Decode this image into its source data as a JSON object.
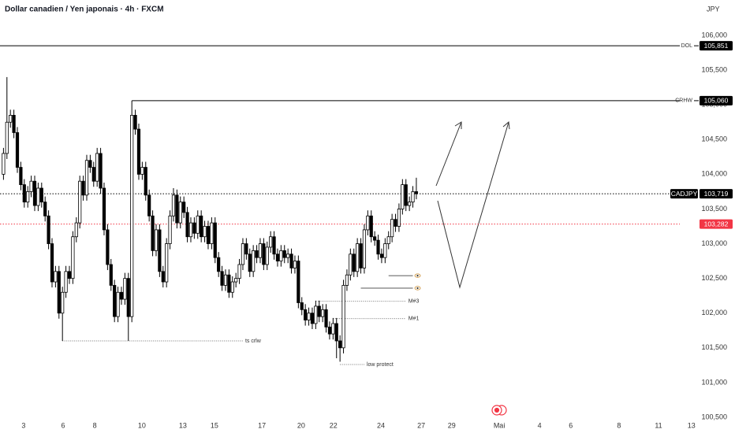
{
  "chart_data": {
    "type": "candlestick",
    "title": "Dollar canadien / Yen japonais · 4h · FXCM",
    "currency": "JPY",
    "up_color": "#ffffff",
    "down_color": "#000000",
    "edge_color": "#000000",
    "grid": false,
    "open": [
      104.0,
      104.3,
      104.75,
      104.85,
      104.6,
      104.1,
      103.85,
      103.6,
      103.75,
      103.9,
      103.55,
      103.8,
      103.6,
      103.4,
      103.0,
      102.45,
      102.6,
      102.0,
      102.3,
      102.6,
      102.5,
      103.1,
      103.3,
      103.9,
      103.7,
      104.2,
      104.1,
      103.9,
      104.3,
      103.8,
      103.2,
      102.7,
      102.4,
      101.95,
      102.3,
      102.2,
      102.5,
      101.95,
      104.85,
      104.65,
      104.0,
      104.1,
      103.7,
      103.4,
      102.9,
      103.2,
      102.6,
      102.45,
      103.0,
      103.4,
      103.7,
      103.3,
      103.6,
      103.45,
      103.1,
      103.3,
      103.15,
      103.4,
      103.1,
      103.25,
      103.0,
      103.3,
      102.8,
      102.6,
      102.4,
      102.55,
      102.3,
      102.45,
      102.5,
      102.7,
      103.0,
      102.85,
      102.6,
      102.9,
      102.8,
      103.0,
      102.7,
      102.95,
      103.1,
      102.85,
      102.75,
      102.9,
      102.8,
      102.85,
      102.65,
      102.75,
      102.15,
      102.05,
      101.9,
      102.0,
      101.85,
      102.1,
      101.95,
      102.05,
      101.8,
      101.7,
      101.85,
      101.6,
      101.5,
      102.4,
      102.55,
      102.85,
      102.6,
      103.0,
      102.65,
      103.2,
      103.4,
      103.1,
      103.05,
      102.85,
      102.8,
      103.0,
      103.1,
      103.35,
      103.25,
      103.5,
      103.85,
      103.55,
      103.6,
      103.75
    ],
    "high": [
      104.38,
      105.4,
      104.93,
      104.93,
      104.68,
      104.18,
      103.93,
      103.83,
      103.98,
      103.98,
      103.88,
      103.88,
      103.68,
      103.48,
      103.08,
      102.68,
      102.68,
      102.38,
      102.68,
      102.68,
      103.18,
      103.38,
      103.98,
      103.98,
      104.28,
      104.28,
      104.18,
      104.38,
      104.38,
      103.88,
      103.28,
      102.78,
      102.48,
      102.38,
      102.38,
      102.58,
      102.58,
      104.9,
      104.93,
      104.73,
      104.18,
      104.18,
      103.78,
      103.48,
      103.28,
      103.28,
      102.68,
      103.08,
      103.48,
      103.8,
      103.78,
      103.68,
      103.68,
      103.53,
      103.38,
      103.38,
      103.48,
      103.48,
      103.33,
      103.33,
      103.38,
      103.38,
      102.88,
      102.68,
      102.63,
      102.63,
      102.53,
      102.58,
      102.78,
      103.08,
      103.08,
      102.93,
      102.98,
      102.98,
      103.08,
      103.08,
      103.03,
      103.18,
      103.18,
      102.93,
      102.98,
      102.98,
      102.93,
      102.93,
      102.83,
      102.83,
      102.23,
      102.13,
      102.08,
      102.08,
      102.18,
      102.18,
      102.13,
      102.13,
      101.88,
      101.93,
      101.93,
      101.68,
      102.48,
      102.63,
      102.93,
      102.93,
      103.08,
      103.08,
      103.28,
      103.48,
      103.48,
      103.18,
      103.13,
      102.93,
      103.08,
      103.18,
      103.43,
      103.43,
      103.58,
      103.93,
      103.93,
      103.68,
      103.83,
      103.95
    ],
    "low": [
      103.92,
      104.22,
      104.67,
      104.52,
      104.02,
      103.77,
      103.52,
      103.52,
      103.67,
      103.47,
      103.47,
      103.52,
      103.32,
      102.92,
      102.37,
      102.37,
      101.92,
      101.6,
      102.22,
      102.42,
      102.42,
      103.02,
      103.22,
      103.62,
      103.62,
      104.02,
      103.82,
      103.82,
      103.72,
      103.12,
      102.62,
      102.32,
      101.87,
      101.87,
      102.12,
      102.12,
      101.6,
      101.87,
      104.57,
      103.92,
      103.92,
      103.62,
      103.32,
      102.82,
      102.82,
      102.52,
      102.37,
      102.37,
      102.92,
      103.32,
      103.22,
      103.22,
      103.37,
      103.02,
      103.02,
      103.07,
      103.07,
      103.02,
      103.02,
      102.92,
      102.92,
      102.72,
      102.52,
      102.32,
      102.32,
      102.22,
      102.22,
      102.37,
      102.42,
      102.62,
      102.77,
      102.52,
      102.52,
      102.72,
      102.72,
      102.62,
      102.62,
      102.87,
      102.77,
      102.67,
      102.67,
      102.72,
      102.72,
      102.57,
      102.57,
      102.07,
      101.97,
      101.82,
      101.82,
      101.77,
      101.77,
      101.87,
      101.87,
      101.72,
      101.62,
      101.62,
      101.35,
      101.3,
      101.42,
      102.32,
      102.47,
      102.52,
      102.52,
      102.57,
      102.57,
      103.12,
      103.02,
      102.97,
      102.77,
      102.72,
      102.72,
      102.92,
      103.02,
      103.17,
      103.17,
      103.42,
      103.47,
      103.47,
      103.52,
      103.64
    ],
    "close": [
      104.3,
      104.75,
      104.85,
      104.6,
      104.1,
      103.85,
      103.6,
      103.75,
      103.9,
      103.55,
      103.8,
      103.6,
      103.4,
      103.0,
      102.45,
      102.6,
      102.0,
      102.3,
      102.6,
      102.5,
      103.1,
      103.3,
      103.9,
      103.7,
      104.2,
      104.1,
      103.9,
      104.3,
      103.8,
      103.2,
      102.7,
      102.4,
      101.95,
      102.3,
      102.2,
      102.5,
      101.95,
      104.85,
      104.65,
      104.0,
      104.1,
      103.7,
      103.4,
      102.9,
      103.2,
      102.6,
      102.45,
      103.0,
      103.4,
      103.7,
      103.3,
      103.6,
      103.45,
      103.1,
      103.3,
      103.15,
      103.4,
      103.1,
      103.25,
      103.0,
      103.3,
      102.8,
      102.6,
      102.4,
      102.55,
      102.3,
      102.45,
      102.5,
      102.7,
      103.0,
      102.85,
      102.6,
      102.9,
      102.8,
      103.0,
      102.7,
      102.95,
      103.1,
      102.85,
      102.75,
      102.9,
      102.8,
      102.85,
      102.65,
      102.75,
      102.15,
      102.05,
      101.9,
      102.0,
      101.85,
      102.1,
      101.95,
      102.05,
      101.8,
      101.7,
      101.85,
      101.6,
      101.5,
      102.4,
      102.55,
      102.85,
      102.6,
      103.0,
      102.65,
      103.2,
      103.4,
      103.1,
      103.05,
      102.85,
      102.8,
      103.0,
      103.1,
      103.35,
      103.25,
      103.5,
      103.85,
      103.55,
      103.6,
      103.75,
      103.719
    ],
    "xlim": [
      0,
      202.3
    ],
    "xticks": [
      {
        "value": 6.8,
        "label": "3"
      },
      {
        "value": 18.2,
        "label": "6"
      },
      {
        "value": 27.3,
        "label": "8"
      },
      {
        "value": 40.9,
        "label": "10"
      },
      {
        "value": 52.7,
        "label": "13"
      },
      {
        "value": 61.8,
        "label": "15"
      },
      {
        "value": 75.5,
        "label": "17"
      },
      {
        "value": 86.8,
        "label": "20"
      },
      {
        "value": 96.1,
        "label": "22"
      },
      {
        "value": 109.8,
        "label": "24"
      },
      {
        "value": 121.4,
        "label": "27"
      },
      {
        "value": 130.2,
        "label": "29"
      },
      {
        "value": 143.9,
        "label": "Mai"
      },
      {
        "value": 155.5,
        "label": "4"
      },
      {
        "value": 164.5,
        "label": "6"
      },
      {
        "value": 178.4,
        "label": "8"
      },
      {
        "value": 189.8,
        "label": "11"
      },
      {
        "value": 199.3,
        "label": "13"
      }
    ],
    "ylim": [
      100.5,
      106.0
    ],
    "yticks": [
      {
        "value": 106.0,
        "label": "106,000"
      },
      {
        "value": 105.5,
        "label": "105,500"
      },
      {
        "value": 105.0,
        "label": "105,000"
      },
      {
        "value": 104.5,
        "label": "104,500"
      },
      {
        "value": 104.0,
        "label": "104,000"
      },
      {
        "value": 103.5,
        "label": "103,500"
      },
      {
        "value": 103.0,
        "label": "103,000"
      },
      {
        "value": 102.5,
        "label": "102,500"
      },
      {
        "value": 102.0,
        "label": "102,000"
      },
      {
        "value": 101.5,
        "label": "101,500"
      },
      {
        "value": 101.0,
        "label": "101,000"
      },
      {
        "value": 100.5,
        "label": "100,500"
      }
    ],
    "levels": [
      {
        "name": "DOL",
        "value": 105.851,
        "label": "105,851",
        "color": "#000000",
        "style": "solid"
      },
      {
        "name": "CRHW",
        "value": 105.06,
        "label": "105,060",
        "color": "#000000",
        "style": "solid",
        "x_start": 37
      },
      {
        "symbol": "CADJPY",
        "value": 103.719,
        "label": "103,719",
        "color": "#000000",
        "style": "dotted"
      },
      {
        "value": 103.282,
        "label": "103,282",
        "color": "#f23645",
        "style": "dotted"
      }
    ],
    "annotations": [
      {
        "text": "ts crlw",
        "value": 101.6,
        "x": [
          17,
          69
        ]
      },
      {
        "text": "M#3",
        "value": 102.17,
        "x": [
          90,
          116
        ]
      },
      {
        "text": "M#1",
        "value": 101.92,
        "x": [
          95,
          116
        ]
      },
      {
        "text": "low protect",
        "value": 101.26,
        "x": [
          97,
          104
        ]
      }
    ],
    "markers": [
      {
        "value": 102.54,
        "x": [
          111,
          118
        ]
      },
      {
        "value": 102.36,
        "x": [
          103,
          118
        ]
      }
    ]
  }
}
